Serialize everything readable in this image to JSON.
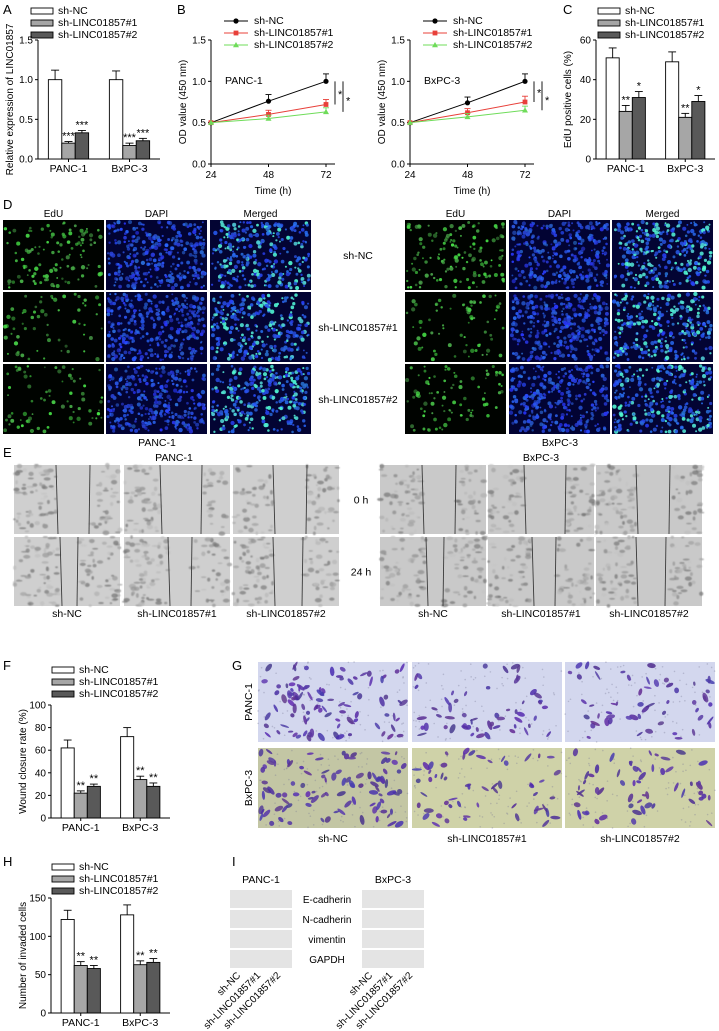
{
  "panels": {
    "A": {
      "label": "A"
    },
    "B": {
      "label": "B"
    },
    "C": {
      "label": "C"
    },
    "D": {
      "label": "D"
    },
    "E": {
      "label": "E"
    },
    "F": {
      "label": "F"
    },
    "G": {
      "label": "G"
    },
    "H": {
      "label": "H"
    },
    "I": {
      "label": "I"
    }
  },
  "legend_groups": [
    "sh-NC",
    "sh-LINC01857#1",
    "sh-LINC01857#2"
  ],
  "cell_lines": [
    "PANC-1",
    "BxPC-3"
  ],
  "colors": {
    "sh-NC": "#ffffff",
    "sh-LINC01857#1": "#a6a6a6",
    "sh-LINC01857#2": "#595959",
    "line_nc": "#000000",
    "line_1": "#e8403a",
    "line_2": "#6fdc5a",
    "edu_green": "#3fbf4f",
    "dapi_blue": "#1f2fd0",
    "crystal_violet": "#5a3d9c"
  },
  "chart_data": [
    {
      "id": "A",
      "type": "bar",
      "title": "",
      "ylabel": "Relative expression of LINC01857",
      "xlabel": "",
      "categories": [
        "PANC-1",
        "BxPC-3"
      ],
      "ylim": [
        0,
        1.5
      ],
      "yticks": [
        "0.0",
        "0.5",
        "1.0",
        "1.5"
      ],
      "series": [
        {
          "name": "sh-NC",
          "values": [
            1.0,
            1.0
          ],
          "err": [
            0.12,
            0.11
          ]
        },
        {
          "name": "sh-LINC01857#1",
          "values": [
            0.2,
            0.17
          ],
          "err": [
            0.02,
            0.03
          ]
        },
        {
          "name": "sh-LINC01857#2",
          "values": [
            0.33,
            0.23
          ],
          "err": [
            0.03,
            0.03
          ]
        }
      ],
      "annotations": [
        {
          "group": 0,
          "series": 1,
          "text": "***"
        },
        {
          "group": 0,
          "series": 2,
          "text": "***"
        },
        {
          "group": 1,
          "series": 1,
          "text": "***"
        },
        {
          "group": 1,
          "series": 2,
          "text": "***"
        }
      ]
    },
    {
      "id": "B1",
      "type": "line",
      "title": "PANC-1",
      "xlabel": "Time (h)",
      "ylabel": "OD value (450 nm)",
      "x": [
        24,
        48,
        72
      ],
      "xticks": [
        "24",
        "48",
        "72"
      ],
      "ylim": [
        0,
        1.5
      ],
      "yticks": [
        "0.0",
        "0.5",
        "1.0",
        "1.5"
      ],
      "series": [
        {
          "name": "sh-NC",
          "values": [
            0.5,
            0.76,
            1.0
          ],
          "err": [
            0.02,
            0.08,
            0.09
          ]
        },
        {
          "name": "sh-LINC01857#1",
          "values": [
            0.5,
            0.6,
            0.72
          ],
          "err": [
            0.02,
            0.05,
            0.06
          ]
        },
        {
          "name": "sh-LINC01857#2",
          "values": [
            0.5,
            0.55,
            0.63
          ],
          "err": [
            0.02,
            0.04,
            0.05
          ]
        }
      ],
      "sig": [
        "*",
        "*"
      ]
    },
    {
      "id": "B2",
      "type": "line",
      "title": "BxPC-3",
      "xlabel": "Time (h)",
      "ylabel": "OD value (450 nm)",
      "x": [
        24,
        48,
        72
      ],
      "xticks": [
        "24",
        "48",
        "72"
      ],
      "ylim": [
        0,
        1.5
      ],
      "yticks": [
        "0.0",
        "0.5",
        "1.0",
        "1.5"
      ],
      "series": [
        {
          "name": "sh-NC",
          "values": [
            0.5,
            0.74,
            1.0
          ],
          "err": [
            0.02,
            0.07,
            0.09
          ]
        },
        {
          "name": "sh-LINC01857#1",
          "values": [
            0.5,
            0.62,
            0.75
          ],
          "err": [
            0.02,
            0.05,
            0.07
          ]
        },
        {
          "name": "sh-LINC01857#2",
          "values": [
            0.5,
            0.57,
            0.65
          ],
          "err": [
            0.02,
            0.04,
            0.05
          ]
        }
      ],
      "sig": [
        "*",
        "*"
      ]
    },
    {
      "id": "C",
      "type": "bar",
      "title": "",
      "ylabel": "EdU positive cells (%)",
      "xlabel": "",
      "categories": [
        "PANC-1",
        "BxPC-3"
      ],
      "ylim": [
        0,
        60
      ],
      "yticks": [
        "0",
        "20",
        "40",
        "60"
      ],
      "series": [
        {
          "name": "sh-NC",
          "values": [
            51,
            49
          ],
          "err": [
            5,
            5
          ]
        },
        {
          "name": "sh-LINC01857#1",
          "values": [
            24,
            21
          ],
          "err": [
            3,
            2
          ]
        },
        {
          "name": "sh-LINC01857#2",
          "values": [
            31,
            29
          ],
          "err": [
            3,
            3
          ]
        }
      ],
      "annotations": [
        {
          "group": 0,
          "series": 1,
          "text": "**"
        },
        {
          "group": 0,
          "series": 2,
          "text": "*"
        },
        {
          "group": 1,
          "series": 1,
          "text": "**"
        },
        {
          "group": 1,
          "series": 2,
          "text": "*"
        }
      ]
    },
    {
      "id": "F",
      "type": "bar",
      "title": "",
      "ylabel": "Wound closure rate (%)",
      "xlabel": "",
      "categories": [
        "PANC-1",
        "BxPC-3"
      ],
      "ylim": [
        0,
        100
      ],
      "yticks": [
        "0",
        "20",
        "40",
        "60",
        "80",
        "100"
      ],
      "series": [
        {
          "name": "sh-NC",
          "values": [
            62,
            72
          ],
          "err": [
            7,
            8
          ]
        },
        {
          "name": "sh-LINC01857#1",
          "values": [
            22,
            34
          ],
          "err": [
            2,
            3
          ]
        },
        {
          "name": "sh-LINC01857#2",
          "values": [
            28,
            28
          ],
          "err": [
            2,
            3
          ]
        }
      ],
      "annotations": [
        {
          "group": 0,
          "series": 1,
          "text": "**"
        },
        {
          "group": 0,
          "series": 2,
          "text": "**"
        },
        {
          "group": 1,
          "series": 1,
          "text": "**"
        },
        {
          "group": 1,
          "series": 2,
          "text": "**"
        }
      ]
    },
    {
      "id": "H",
      "type": "bar",
      "title": "",
      "ylabel": "Number of invaded cells",
      "xlabel": "",
      "categories": [
        "PANC-1",
        "BxPC-3"
      ],
      "ylim": [
        0,
        150
      ],
      "yticks": [
        "0",
        "50",
        "100",
        "150"
      ],
      "series": [
        {
          "name": "sh-NC",
          "values": [
            122,
            128
          ],
          "err": [
            12,
            13
          ]
        },
        {
          "name": "sh-LINC01857#1",
          "values": [
            62,
            63
          ],
          "err": [
            5,
            5
          ]
        },
        {
          "name": "sh-LINC01857#2",
          "values": [
            58,
            66
          ],
          "err": [
            4,
            5
          ]
        }
      ],
      "annotations": [
        {
          "group": 0,
          "series": 1,
          "text": "**"
        },
        {
          "group": 0,
          "series": 2,
          "text": "**"
        },
        {
          "group": 1,
          "series": 1,
          "text": "**"
        },
        {
          "group": 1,
          "series": 2,
          "text": "**"
        }
      ]
    }
  ],
  "panel_D": {
    "columns": [
      "EdU",
      "DAPI",
      "Merged"
    ],
    "rows": [
      "sh-NC",
      "sh-LINC01857#1",
      "sh-LINC01857#2"
    ],
    "cell_lines": [
      "PANC-1",
      "BxPC-3"
    ]
  },
  "panel_E": {
    "cell_lines": [
      "PANC-1",
      "BxPC-3"
    ],
    "times": [
      "0 h",
      "24 h"
    ],
    "groups": [
      "sh-NC",
      "sh-LINC01857#1",
      "sh-LINC01857#2"
    ]
  },
  "panel_G": {
    "rows": [
      "PANC-1",
      "BxPC-3"
    ],
    "groups": [
      "sh-NC",
      "sh-LINC01857#1",
      "sh-LINC01857#2"
    ]
  },
  "panel_I": {
    "cell_lines": [
      "PANC-1",
      "BxPC-3"
    ],
    "proteins": [
      "E-cadherin",
      "N-cadherin",
      "vimentin",
      "GAPDH"
    ],
    "lanes": [
      "sh-NC",
      "sh-LINC01857#1",
      "sh-LINC01857#2"
    ]
  }
}
